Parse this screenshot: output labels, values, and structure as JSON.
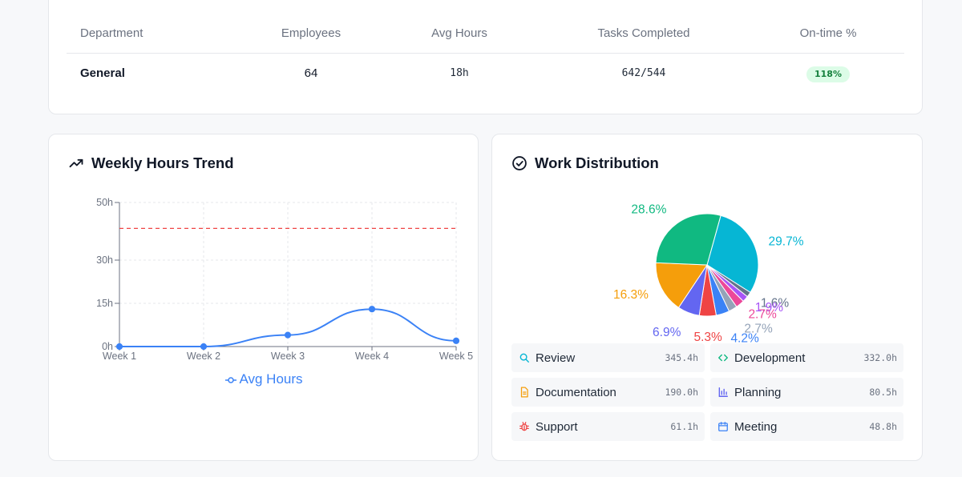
{
  "table": {
    "headers": [
      "Department",
      "Employees",
      "Avg Hours",
      "Tasks Completed",
      "On-time %"
    ],
    "rows": [
      {
        "department": "General",
        "employees": "64",
        "avg_hours": "18h",
        "tasks_completed": "642/544",
        "on_time": "118%"
      }
    ]
  },
  "trend": {
    "title": "Weekly Hours Trend",
    "icon": "trending-up-icon",
    "legend_label": "Avg Hours"
  },
  "distribution": {
    "title": "Work Distribution",
    "icon": "check-circle-icon",
    "legend": [
      {
        "label": "Review",
        "value": "345.4h",
        "icon": "search-icon",
        "color": "#06b6d4"
      },
      {
        "label": "Development",
        "value": "332.0h",
        "icon": "code-icon",
        "color": "#10b981"
      },
      {
        "label": "Documentation",
        "value": "190.0h",
        "icon": "document-icon",
        "color": "#f59e0b"
      },
      {
        "label": "Planning",
        "value": "80.5h",
        "icon": "bar-chart-icon",
        "color": "#6366f1"
      },
      {
        "label": "Support",
        "value": "61.1h",
        "icon": "bug-icon",
        "color": "#ef4444"
      },
      {
        "label": "Meeting",
        "value": "48.8h",
        "icon": "calendar-icon",
        "color": "#3b82f6"
      }
    ]
  },
  "chart_data": [
    {
      "type": "line",
      "x": [
        "Week 1",
        "Week 2",
        "Week 3",
        "Week 4",
        "Week 5"
      ],
      "series": [
        {
          "name": "Avg Hours",
          "values": [
            0,
            0,
            4,
            13,
            2
          ],
          "color": "#3b82f6"
        }
      ],
      "yticks": [
        "0h",
        "15h",
        "30h",
        "50h"
      ],
      "ylim": [
        0,
        50
      ],
      "reference_line": {
        "value": 41,
        "color": "#ef4444",
        "style": "dashed"
      },
      "grid": true
    },
    {
      "type": "pie",
      "slices": [
        {
          "label": "29.7%",
          "value": 29.7,
          "color": "#06b6d4"
        },
        {
          "label": "1.6%",
          "value": 1.6,
          "color": "#64748b"
        },
        {
          "label": "1.9%",
          "value": 1.9,
          "color": "#a855f7"
        },
        {
          "label": "2.7%",
          "value": 2.7,
          "color": "#ec4899"
        },
        {
          "label": "2.7%",
          "value": 2.7,
          "color": "#94a3b8"
        },
        {
          "label": "4.2%",
          "value": 4.2,
          "color": "#3b82f6"
        },
        {
          "label": "5.3%",
          "value": 5.3,
          "color": "#ef4444"
        },
        {
          "label": "6.9%",
          "value": 6.9,
          "color": "#6366f1"
        },
        {
          "label": "16.3%",
          "value": 16.3,
          "color": "#f59e0b"
        },
        {
          "label": "28.6%",
          "value": 28.6,
          "color": "#10b981"
        }
      ]
    }
  ]
}
